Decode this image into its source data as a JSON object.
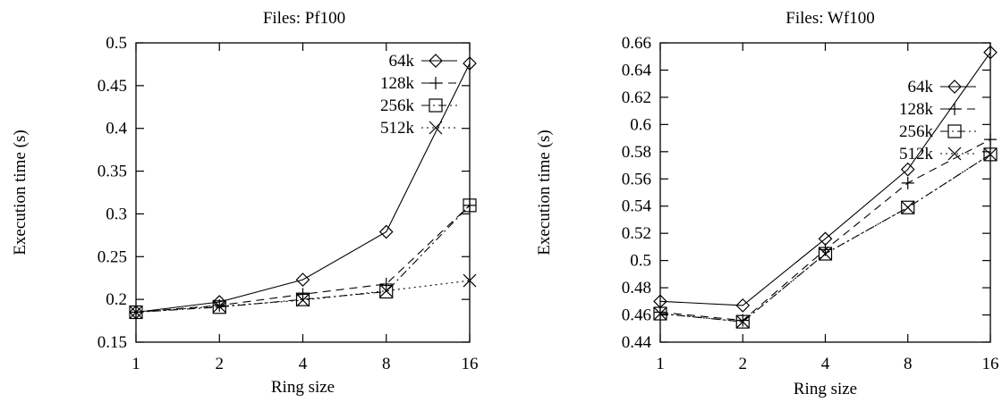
{
  "chart_data": [
    {
      "type": "line",
      "title": "Files: Pf100",
      "xlabel": "Ring size",
      "ylabel": "Execution time (s)",
      "x": [
        1,
        2,
        4,
        8,
        16
      ],
      "xticks": [
        "1",
        "2",
        "4",
        "8",
        "16"
      ],
      "xscale": "log2",
      "ylim": [
        0.15,
        0.5
      ],
      "yticks": [
        "0.15",
        "0.2",
        "0.25",
        "0.3",
        "0.35",
        "0.4",
        "0.45",
        "0.5"
      ],
      "legend_position": "top-right",
      "series": [
        {
          "name": "64k",
          "marker": "diamond",
          "dash": "solid",
          "values": [
            0.185,
            0.197,
            0.223,
            0.279,
            0.476
          ]
        },
        {
          "name": "128k",
          "marker": "plus",
          "dash": "dashed",
          "values": [
            0.185,
            0.193,
            0.206,
            0.218,
            0.31
          ]
        },
        {
          "name": "256k",
          "marker": "square",
          "dash": "dashdot",
          "values": [
            0.185,
            0.191,
            0.2,
            0.209,
            0.31
          ]
        },
        {
          "name": "512k",
          "marker": "cross",
          "dash": "dotted",
          "values": [
            0.185,
            0.192,
            0.199,
            0.21,
            0.222
          ]
        }
      ]
    },
    {
      "type": "line",
      "title": "Files: Wf100",
      "xlabel": "Ring size",
      "ylabel": "Execution time (s)",
      "x": [
        1,
        2,
        4,
        8,
        16
      ],
      "xticks": [
        "1",
        "2",
        "4",
        "8",
        "16"
      ],
      "xscale": "log2",
      "ylim": [
        0.44,
        0.66
      ],
      "yticks": [
        "0.44",
        "0.46",
        "0.48",
        "0.5",
        "0.52",
        "0.54",
        "0.56",
        "0.58",
        "0.6",
        "0.62",
        "0.64",
        "0.66"
      ],
      "legend_position": "top-right",
      "series": [
        {
          "name": "64k",
          "marker": "diamond",
          "dash": "solid",
          "values": [
            0.47,
            0.467,
            0.516,
            0.567,
            0.653
          ]
        },
        {
          "name": "128k",
          "marker": "plus",
          "dash": "dashed",
          "values": [
            0.462,
            0.456,
            0.508,
            0.557,
            0.589
          ]
        },
        {
          "name": "256k",
          "marker": "square",
          "dash": "dashdot",
          "values": [
            0.461,
            0.455,
            0.505,
            0.539,
            0.578
          ]
        },
        {
          "name": "512k",
          "marker": "cross",
          "dash": "dotted",
          "values": [
            0.461,
            0.455,
            0.505,
            0.539,
            0.578
          ]
        }
      ]
    }
  ]
}
